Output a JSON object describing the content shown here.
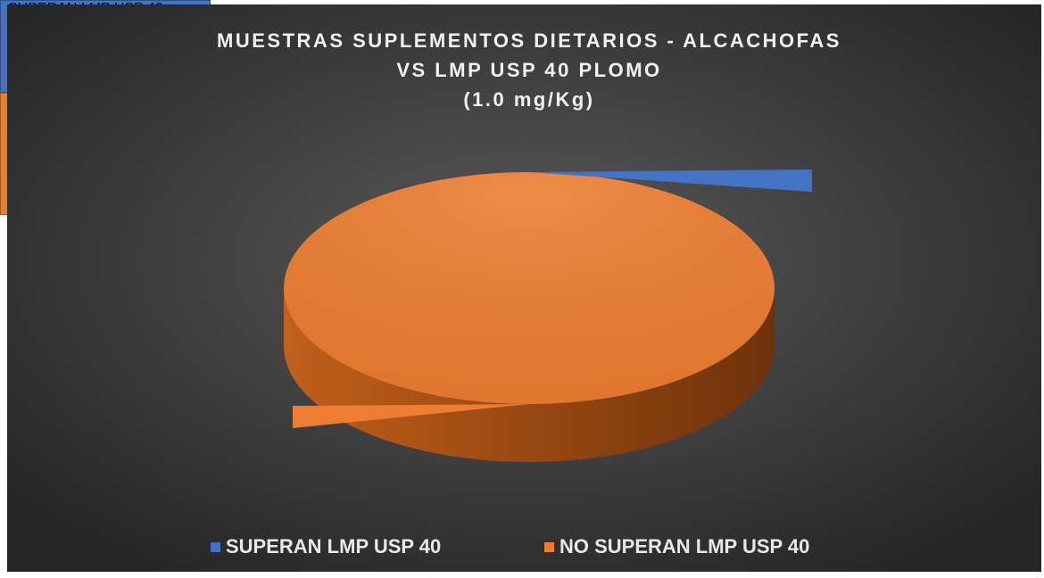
{
  "chart_data": {
    "type": "pie",
    "title": [
      "MUESTRAS SUPLEMENTOS DIETARIOS - ALCACHOFAS",
      "VS LMP USP 40 PLOMO",
      "(1.0 mg/Kg)"
    ],
    "categories": [
      "SUPERAN LMP USP 40",
      "NO SUPERAN LMP USP 40"
    ],
    "values": [
      0,
      100
    ],
    "value_labels": [
      "0%",
      "100%"
    ],
    "colors": [
      "#4472c4",
      "#ed7d31"
    ],
    "legend": "bottom"
  }
}
